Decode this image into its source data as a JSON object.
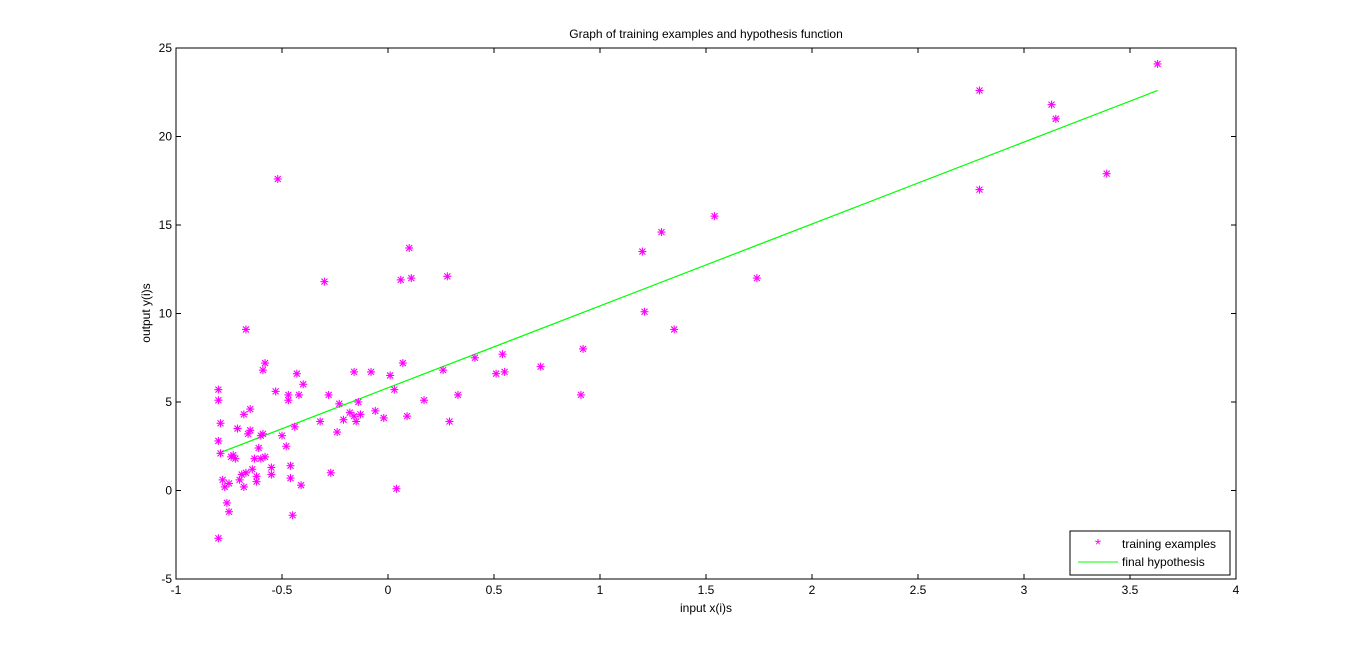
{
  "colors": {
    "points": "#ff00ff",
    "line": "#00ff00",
    "axes": "#000000",
    "background": "#ffffff"
  },
  "chart_data": {
    "type": "scatter",
    "title": "Graph of training examples and hypothesis function",
    "xlabel": "input x(i)s",
    "ylabel": "output y(i)s",
    "xlim": [
      -1,
      4
    ],
    "ylim": [
      -5,
      25
    ],
    "xticks": [
      -1,
      -0.5,
      0,
      0.5,
      1,
      1.5,
      2,
      2.5,
      3,
      3.5,
      4
    ],
    "yticks": [
      -5,
      0,
      5,
      10,
      15,
      20,
      25
    ],
    "grid": false,
    "legend_position": "bottom-right",
    "series": [
      {
        "name": "training examples",
        "kind": "points",
        "marker": "*",
        "x": [
          -0.8,
          -0.8,
          -0.79,
          -0.8,
          -0.79,
          -0.78,
          -0.77,
          -0.76,
          -0.75,
          -0.74,
          -0.73,
          -0.8,
          -0.71,
          -0.7,
          -0.69,
          -0.68,
          -0.67,
          -0.68,
          -0.66,
          -0.65,
          -0.64,
          -0.63,
          -0.62,
          -0.61,
          -0.6,
          -0.59,
          -0.58,
          -0.58,
          -0.59,
          -0.55,
          -0.55,
          -0.52,
          -0.5,
          -0.48,
          -0.47,
          -0.47,
          -0.46,
          -0.46,
          -0.45,
          -0.44,
          -0.43,
          -0.42,
          -0.41,
          -0.4,
          -0.67,
          -0.6,
          -0.65,
          -0.72,
          -0.75,
          -0.62,
          -0.3,
          -0.28,
          -0.27,
          -0.24,
          -0.23,
          -0.21,
          -0.18,
          -0.16,
          -0.15,
          -0.14,
          -0.13,
          -0.08,
          -0.06,
          -0.02,
          0.01,
          0.03,
          0.04,
          0.06,
          0.07,
          0.09,
          0.1,
          0.11,
          0.17,
          0.26,
          0.29,
          0.28,
          0.33,
          0.41,
          0.51,
          0.54,
          0.55,
          0.72,
          0.91,
          0.92,
          1.2,
          1.21,
          1.29,
          1.35,
          1.54,
          1.74,
          2.79,
          2.79,
          3.13,
          3.15,
          3.39,
          3.63,
          -0.16,
          -0.32,
          -0.53
        ],
        "y": [
          5.7,
          5.1,
          3.8,
          2.8,
          2.1,
          0.6,
          0.2,
          -0.7,
          -1.2,
          1.9,
          2.0,
          -2.7,
          3.5,
          0.6,
          0.9,
          4.3,
          1.0,
          0.2,
          3.2,
          4.6,
          1.2,
          1.8,
          0.5,
          2.4,
          1.8,
          6.8,
          7.2,
          1.9,
          3.2,
          0.9,
          1.3,
          17.6,
          3.1,
          2.5,
          5.1,
          5.4,
          1.4,
          0.7,
          -1.4,
          3.6,
          6.6,
          5.4,
          0.3,
          6.0,
          9.1,
          3.1,
          3.4,
          1.8,
          0.4,
          0.8,
          11.8,
          5.4,
          1.0,
          3.3,
          4.9,
          4.0,
          4.4,
          6.7,
          3.9,
          5.0,
          4.3,
          6.7,
          4.5,
          4.1,
          6.5,
          5.7,
          0.1,
          11.9,
          7.2,
          4.2,
          13.7,
          12.0,
          5.1,
          6.8,
          3.9,
          12.1,
          5.4,
          7.5,
          6.6,
          7.7,
          6.7,
          7.0,
          5.4,
          8.0,
          13.5,
          10.1,
          14.6,
          9.1,
          15.5,
          12.0,
          22.6,
          17.0,
          21.8,
          21.0,
          17.9,
          24.1,
          4.2,
          3.9,
          5.6
        ]
      },
      {
        "name": "final hypothesis",
        "kind": "line",
        "x": [
          -0.8,
          3.63
        ],
        "y": [
          2.1,
          22.6
        ]
      }
    ]
  }
}
